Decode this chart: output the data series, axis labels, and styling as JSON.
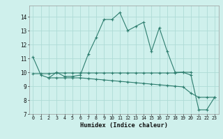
{
  "xlabel": "Humidex (Indice chaleur)",
  "line1_x": [
    0,
    1,
    2,
    3,
    4,
    5,
    6,
    7,
    8,
    9,
    10,
    11,
    12,
    13,
    14,
    15,
    16,
    17,
    18,
    19,
    20,
    21,
    22,
    23
  ],
  "line1_y": [
    11.1,
    9.8,
    9.6,
    10.0,
    9.7,
    9.7,
    9.8,
    11.3,
    12.5,
    13.8,
    13.8,
    14.3,
    13.0,
    13.3,
    13.6,
    11.5,
    13.2,
    11.5,
    10.0,
    10.0,
    9.8,
    7.3,
    7.3,
    8.2
  ],
  "line2_x": [
    0,
    1,
    2,
    3,
    4,
    5,
    6,
    7,
    8,
    9,
    10,
    11,
    12,
    13,
    14,
    15,
    16,
    17,
    18,
    19,
    20
  ],
  "line2_y": [
    9.9,
    9.9,
    9.9,
    9.95,
    9.95,
    9.95,
    9.95,
    9.95,
    9.95,
    9.95,
    9.95,
    9.95,
    9.95,
    9.95,
    9.95,
    9.95,
    9.95,
    9.95,
    9.95,
    10.0,
    10.0
  ],
  "line3_x": [
    2,
    3,
    4,
    5,
    6,
    7,
    8,
    9,
    10,
    11,
    12,
    13,
    14,
    15,
    16,
    17,
    18,
    19,
    20,
    21,
    22,
    23
  ],
  "line3_y": [
    9.6,
    9.6,
    9.6,
    9.6,
    9.6,
    9.55,
    9.5,
    9.45,
    9.4,
    9.35,
    9.3,
    9.25,
    9.2,
    9.15,
    9.1,
    9.05,
    9.0,
    8.95,
    8.5,
    8.2,
    8.2,
    8.2
  ],
  "line_color": "#2d7d6e",
  "bg_color": "#cff0ec",
  "grid_color": "#aedbd6",
  "xlim": [
    -0.5,
    23.5
  ],
  "ylim": [
    7,
    14.8
  ],
  "yticks": [
    7,
    8,
    9,
    10,
    11,
    12,
    13,
    14
  ],
  "xticks": [
    0,
    1,
    2,
    3,
    4,
    5,
    6,
    7,
    8,
    9,
    10,
    11,
    12,
    13,
    14,
    15,
    16,
    17,
    18,
    19,
    20,
    21,
    22,
    23
  ]
}
